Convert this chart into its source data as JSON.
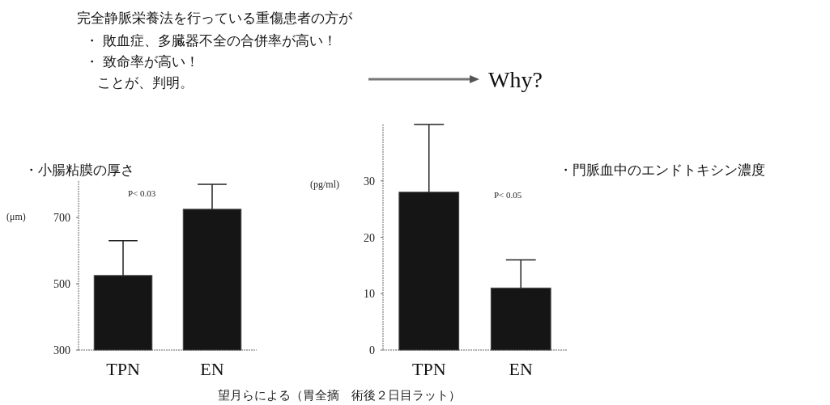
{
  "chart_data": [
    {
      "type": "other",
      "annotations": [
        "完全静脈栄養法を行っている重傷患者の方が",
        "・ 敗血症、多臓器不全の合併率が高い！",
        "・ 致命率が高い！",
        "ことが、判明。",
        "Why?"
      ]
    },
    {
      "type": "bar",
      "title": "・小腸粘膜の厚さ",
      "ylabel": "(μm)",
      "categories": [
        "TPN",
        "EN"
      ],
      "values": [
        525,
        725
      ],
      "errors": [
        [
          525,
          630
        ],
        [
          725,
          800
        ]
      ],
      "colors": [
        "#151515",
        "#151515"
      ],
      "ylim": [
        300,
        810
      ],
      "yticks": [
        300,
        500,
        700
      ],
      "annotations": [
        "P< 0.03",
        "望月らによる（胃全摘　術後２日目ラット）"
      ]
    },
    {
      "type": "bar",
      "title": "・門脈血中のエンドトキシン濃度",
      "ylabel": "(pg/ml)",
      "categories": [
        "TPN",
        "EN"
      ],
      "values": [
        28,
        11
      ],
      "errors": [
        [
          28,
          40
        ],
        [
          11,
          16
        ]
      ],
      "colors": [
        "#151515",
        "#151515"
      ],
      "ylim": [
        0,
        40
      ],
      "yticks": [
        0,
        10,
        20,
        30
      ],
      "annotations": [
        "P< 0.05"
      ]
    }
  ]
}
